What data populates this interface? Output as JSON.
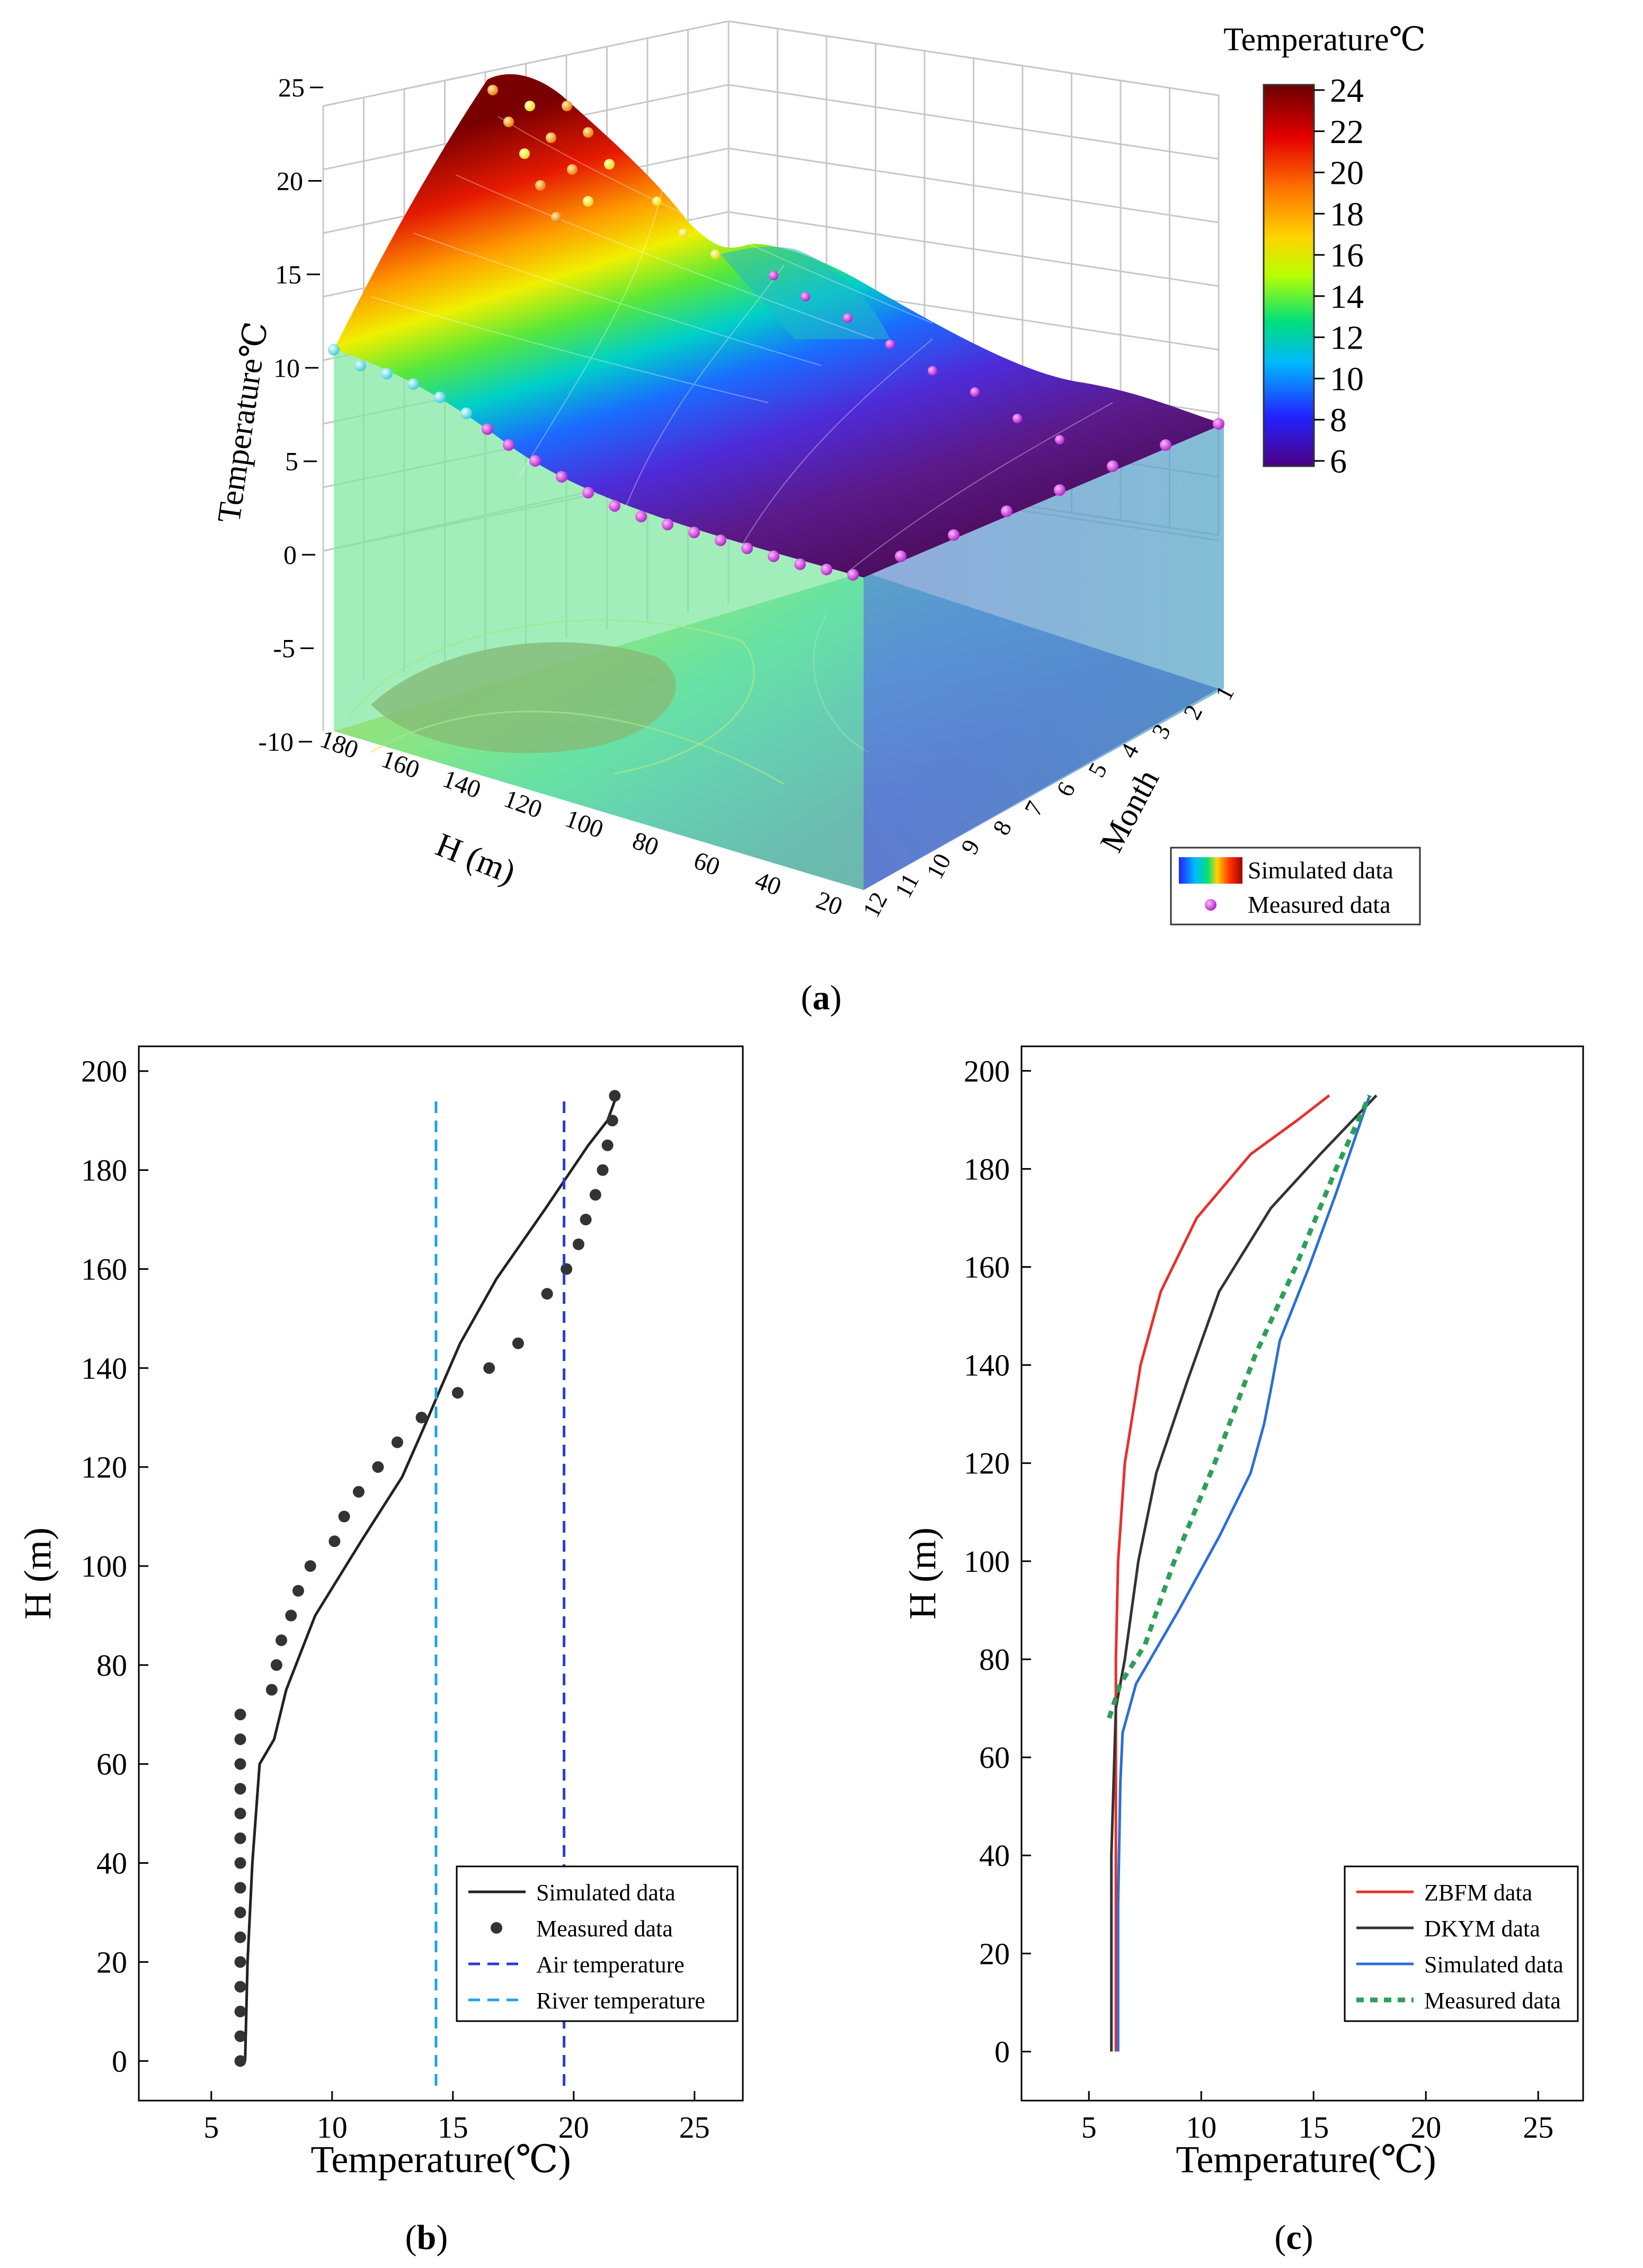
{
  "panel_a": {
    "label": "a",
    "chart_data": {
      "type": "surface3d",
      "title": "",
      "zlabel": "Temperature℃",
      "xlabel": "H (m)",
      "ylabel": "Month",
      "zlim": [
        -10,
        25
      ],
      "z_ticks": [
        "25",
        "20",
        "15",
        "10",
        "5",
        "0",
        "-5",
        "-10"
      ],
      "h_ticks": [
        "180",
        "160",
        "140",
        "120",
        "100",
        "80",
        "60",
        "40",
        "20"
      ],
      "month_ticks": [
        "1",
        "2",
        "3",
        "4",
        "5",
        "6",
        "7",
        "8",
        "9",
        "10",
        "11",
        "12"
      ],
      "colorbar": {
        "title": "Temperature℃",
        "range": [
          6,
          24
        ],
        "ticks": [
          "24",
          "22",
          "20",
          "18",
          "16",
          "14",
          "12",
          "10",
          "8",
          "6"
        ],
        "colors": [
          "#4b0082",
          "#2222ff",
          "#00b8ff",
          "#00e07a",
          "#b8ff00",
          "#ffd400",
          "#ff7a00",
          "#e60000",
          "#6a0000"
        ]
      },
      "legend": {
        "position": "bottom-right",
        "items": [
          "Simulated data",
          "Measured data"
        ],
        "measured_color": "#c23bd8"
      },
      "front_face_colors": [
        "#7ee8a0",
        "#6aa4c8"
      ],
      "description_values": {
        "peak_temp_top_summer": 24,
        "bottom_temp": 6
      }
    }
  },
  "panel_b": {
    "label": "b",
    "chart_data": {
      "type": "line",
      "xlabel": "Temperature(℃)",
      "ylabel": "H (m)",
      "xlim": [
        2,
        27
      ],
      "ylim": [
        -8,
        205
      ],
      "x_ticks": [
        "5",
        "10",
        "15",
        "20",
        "25"
      ],
      "y_ticks": [
        "0",
        "20",
        "40",
        "60",
        "80",
        "100",
        "120",
        "140",
        "160",
        "180",
        "200"
      ],
      "series": [
        {
          "name": "Simulated data",
          "style": "solid",
          "color": "#222222",
          "points": [
            [
              6.4,
              0
            ],
            [
              6.5,
              20
            ],
            [
              6.7,
              40
            ],
            [
              7.0,
              60
            ],
            [
              7.6,
              65
            ],
            [
              8.1,
              75
            ],
            [
              9.3,
              90
            ],
            [
              11.2,
              105
            ],
            [
              12.9,
              118
            ],
            [
              13.8,
              128
            ],
            [
              14.5,
              136
            ],
            [
              15.3,
              145
            ],
            [
              16.8,
              158
            ],
            [
              18.8,
              172
            ],
            [
              20.6,
              185
            ],
            [
              21.4,
              190
            ],
            [
              21.7,
              194
            ]
          ]
        },
        {
          "name": "Measured data",
          "style": "dots",
          "color": "#333333",
          "points": [
            [
              6.2,
              0
            ],
            [
              6.2,
              5
            ],
            [
              6.2,
              10
            ],
            [
              6.2,
              15
            ],
            [
              6.2,
              20
            ],
            [
              6.2,
              25
            ],
            [
              6.2,
              30
            ],
            [
              6.2,
              35
            ],
            [
              6.2,
              40
            ],
            [
              6.2,
              45
            ],
            [
              6.2,
              50
            ],
            [
              6.2,
              55
            ],
            [
              6.2,
              60
            ],
            [
              6.2,
              65
            ],
            [
              6.2,
              70
            ],
            [
              7.5,
              75
            ],
            [
              7.7,
              80
            ],
            [
              7.9,
              85
            ],
            [
              8.3,
              90
            ],
            [
              8.6,
              95
            ],
            [
              9.1,
              100
            ],
            [
              10.1,
              105
            ],
            [
              10.5,
              110
            ],
            [
              11.1,
              115
            ],
            [
              11.9,
              120
            ],
            [
              12.7,
              125
            ],
            [
              13.7,
              130
            ],
            [
              15.2,
              135
            ],
            [
              16.5,
              140
            ],
            [
              17.7,
              145
            ],
            [
              18.9,
              155
            ],
            [
              19.7,
              160
            ],
            [
              20.2,
              165
            ],
            [
              20.5,
              170
            ],
            [
              20.9,
              175
            ],
            [
              21.2,
              180
            ],
            [
              21.4,
              185
            ],
            [
              21.6,
              190
            ],
            [
              21.7,
              195
            ]
          ]
        },
        {
          "name": "Air temperature",
          "style": "dashed",
          "color": "#2b3bd6",
          "points": [
            [
              19.6,
              -5
            ],
            [
              19.6,
              195
            ]
          ]
        },
        {
          "name": "River temperature",
          "style": "dashed",
          "color": "#1ea0e6",
          "points": [
            [
              14.3,
              -5
            ],
            [
              14.3,
              195
            ]
          ]
        }
      ],
      "legend_position": "bottom-right"
    }
  },
  "panel_c": {
    "label": "c",
    "chart_data": {
      "type": "line",
      "xlabel": "Temperature(℃)",
      "ylabel": "H (m)",
      "xlim": [
        2,
        27
      ],
      "ylim": [
        -10,
        205
      ],
      "x_ticks": [
        "5",
        "10",
        "15",
        "20",
        "25"
      ],
      "y_ticks": [
        "0",
        "20",
        "40",
        "60",
        "80",
        "100",
        "120",
        "140",
        "160",
        "180",
        "200"
      ],
      "series": [
        {
          "name": "ZBFM data",
          "style": "solid",
          "color": "#e8302c",
          "points": [
            [
              6.2,
              0
            ],
            [
              6.2,
              40
            ],
            [
              6.2,
              80
            ],
            [
              6.3,
              100
            ],
            [
              6.6,
              120
            ],
            [
              7.3,
              140
            ],
            [
              8.2,
              155
            ],
            [
              9.8,
              170
            ],
            [
              12.2,
              183
            ],
            [
              14.3,
              190
            ],
            [
              15.7,
              195
            ]
          ]
        },
        {
          "name": "DKYM data",
          "style": "solid",
          "color": "#333333",
          "points": [
            [
              6.0,
              0
            ],
            [
              6.0,
              40
            ],
            [
              6.2,
              70
            ],
            [
              6.6,
              80
            ],
            [
              7.2,
              100
            ],
            [
              8.0,
              118
            ],
            [
              9.4,
              137
            ],
            [
              10.8,
              155
            ],
            [
              13.1,
              172
            ],
            [
              15.3,
              183
            ],
            [
              17.8,
              195
            ]
          ]
        },
        {
          "name": "Simulated data",
          "style": "solid",
          "color": "#2a6fd6",
          "points": [
            [
              6.3,
              0
            ],
            [
              6.3,
              30
            ],
            [
              6.4,
              55
            ],
            [
              6.5,
              65
            ],
            [
              7.1,
              75
            ],
            [
              9.0,
              90
            ],
            [
              10.8,
              105
            ],
            [
              12.2,
              118
            ],
            [
              12.8,
              128
            ],
            [
              13.1,
              135
            ],
            [
              13.5,
              145
            ],
            [
              14.8,
              160
            ],
            [
              16.0,
              175
            ],
            [
              17.5,
              195
            ]
          ]
        },
        {
          "name": "Measured data",
          "style": "dotted",
          "color": "#2e9e5a",
          "points": [
            [
              5.9,
              68
            ],
            [
              6.4,
              75
            ],
            [
              7.5,
              83
            ],
            [
              8.8,
              100
            ],
            [
              10.6,
              120
            ],
            [
              12.4,
              142
            ],
            [
              14.2,
              160
            ],
            [
              16.0,
              180
            ],
            [
              17.5,
              195
            ]
          ]
        }
      ],
      "legend_position": "bottom-right"
    }
  }
}
